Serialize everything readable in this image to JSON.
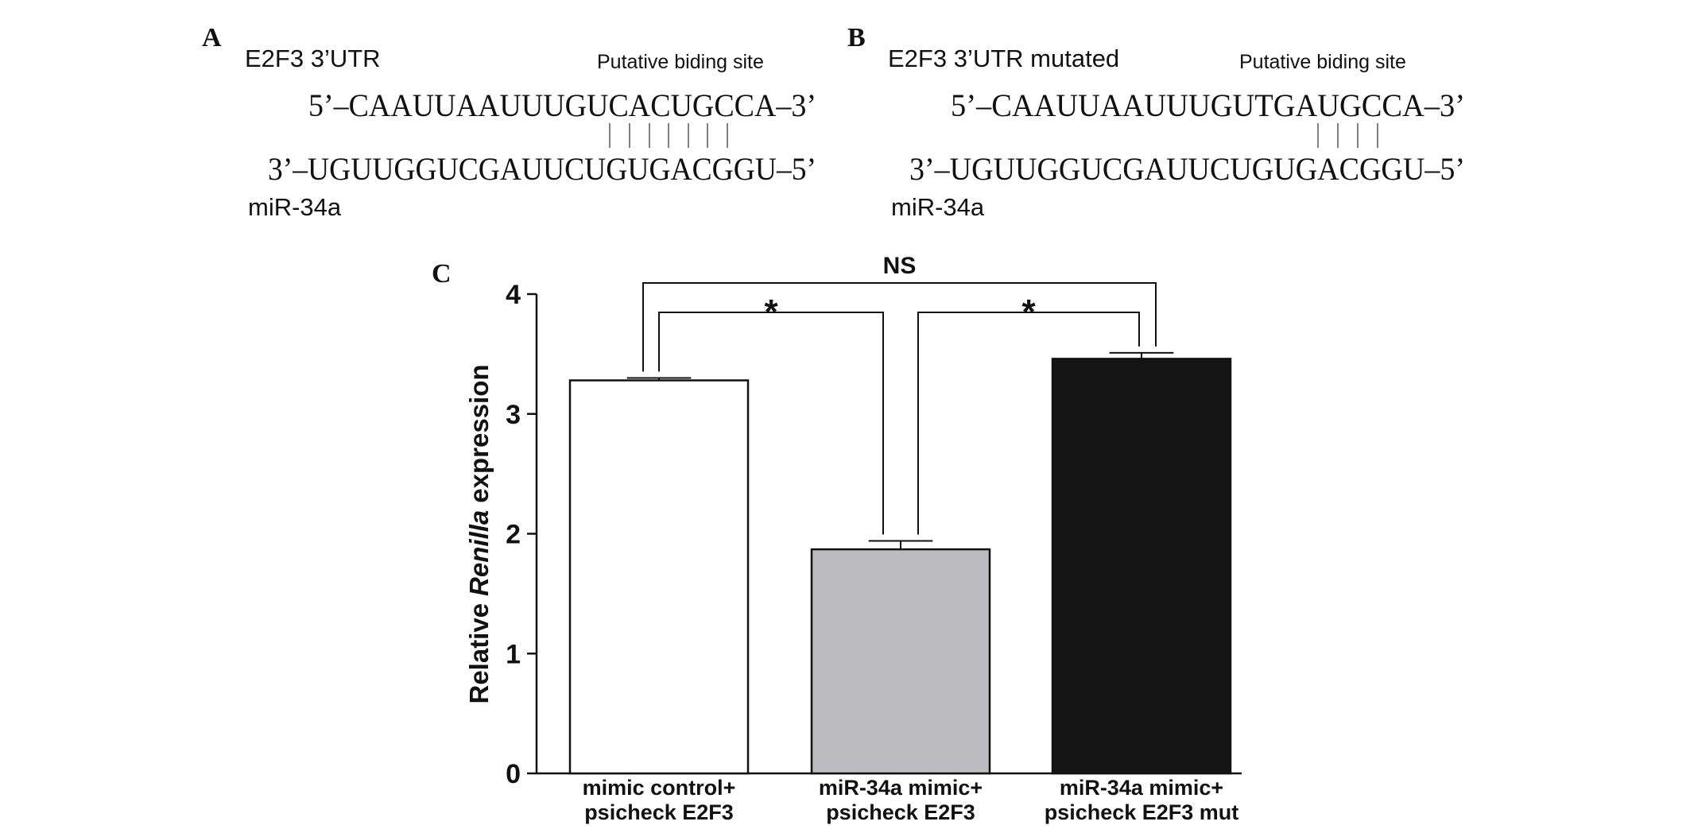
{
  "panels": {
    "A": {
      "label": "A",
      "title": "E2F3 3’UTR",
      "site": "Putative biding site",
      "top": "5’–CAAUUAAUUUGUCACUGCCA–3’",
      "bottom": "3’–UGUUGGUCGAUUCUGUGACGGU–5’",
      "mirna": "miR-34a"
    },
    "B": {
      "label": "B",
      "title": "E2F3 3’UTR mutated",
      "site": "Putative biding site",
      "top": "5’–CAAUUAAUUUGUTGAUGCCA–3’",
      "bottom": "3’–UGUUGGUCGAUUCUGUGACGGU–5’",
      "mirna": "miR-34a"
    },
    "C": {
      "label": "C"
    }
  },
  "chart_data": {
    "type": "bar",
    "ylabel": [
      "Relative",
      "Renilla",
      "expression"
    ],
    "categories": [
      [
        "mimic control+",
        "psicheck E2F3"
      ],
      [
        "miR-34a mimic+",
        "psicheck E2F3"
      ],
      [
        "miR-34a mimic+",
        "psicheck E2F3 mut"
      ]
    ],
    "values": [
      3.28,
      1.87,
      3.46
    ],
    "errors": [
      0.02,
      0.07,
      0.05
    ],
    "colors": [
      "#ffffff",
      "#bcbbc0",
      "#141414"
    ],
    "ylim": [
      0,
      4
    ],
    "yticks": [
      0,
      1,
      2,
      3,
      4
    ],
    "annotations": [
      "*",
      "*",
      "NS"
    ]
  }
}
